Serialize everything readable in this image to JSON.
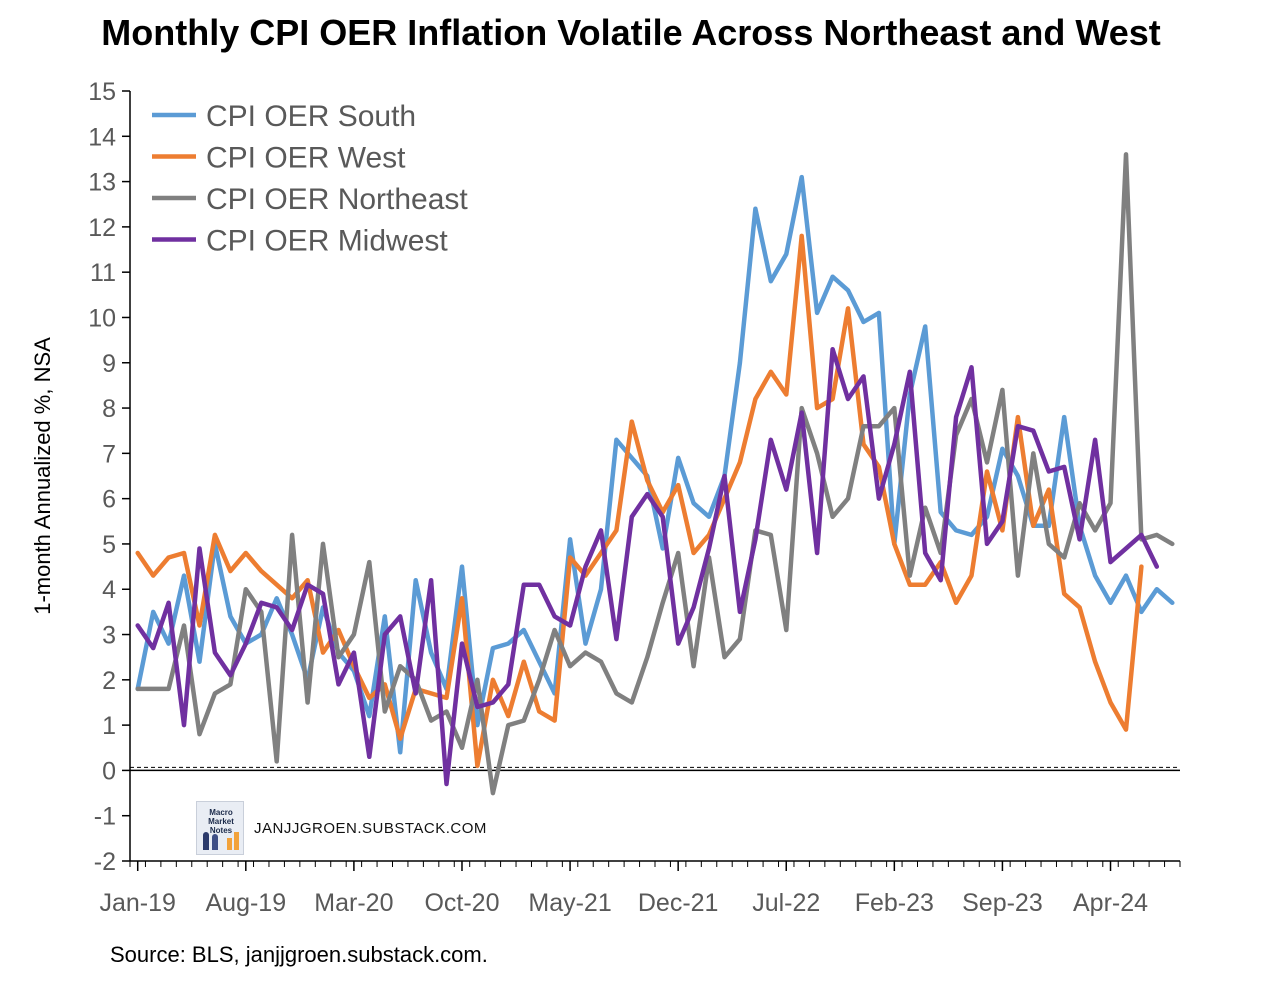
{
  "chart_data": {
    "type": "line",
    "title": "Monthly CPI OER Inflation Volatile Across Northeast and West",
    "ylabel": "1-month Annualized %, NSA",
    "xlabel": "",
    "ylim": [
      -2,
      15
    ],
    "yticks": [
      -2,
      -1,
      0,
      1,
      2,
      3,
      4,
      5,
      6,
      7,
      8,
      9,
      10,
      11,
      12,
      13,
      14,
      15
    ],
    "x_start": "Jan-19",
    "x_tick_labels": [
      "Jan-19",
      "Aug-19",
      "Mar-20",
      "Oct-20",
      "May-21",
      "Dec-21",
      "Jul-22",
      "Feb-23",
      "Sep-23",
      "Apr-24"
    ],
    "x_tick_index": [
      0,
      7,
      14,
      21,
      28,
      35,
      42,
      49,
      56,
      63
    ],
    "legend_position": "top-left",
    "grid": false,
    "series": [
      {
        "name": "CPI OER South",
        "color": "#5b9bd5",
        "values": [
          1.8,
          3.5,
          2.8,
          4.3,
          2.4,
          5.0,
          3.4,
          2.8,
          3.0,
          3.8,
          3.0,
          2.0,
          3.6,
          2.6,
          2.2,
          1.2,
          3.4,
          0.4,
          4.2,
          2.6,
          1.8,
          4.5,
          1.0,
          2.7,
          2.8,
          3.1,
          2.4,
          1.7,
          5.1,
          2.8,
          4.0,
          7.3,
          6.9,
          6.5,
          4.9,
          6.9,
          5.9,
          5.6,
          6.5,
          9.0,
          12.4,
          10.8,
          11.4,
          13.1,
          10.1,
          10.9,
          10.6,
          9.9,
          10.1,
          5.0,
          8.3,
          9.8,
          5.7,
          5.3,
          5.2,
          5.6,
          7.1,
          6.5,
          5.4,
          5.4,
          7.8,
          5.4,
          4.3,
          3.7,
          4.3,
          3.5,
          4.0,
          3.7
        ]
      },
      {
        "name": "CPI OER West",
        "color": "#ed7d31",
        "values": [
          4.8,
          4.3,
          4.7,
          4.8,
          3.2,
          5.2,
          4.4,
          4.8,
          4.4,
          4.1,
          3.8,
          4.2,
          2.6,
          3.1,
          2.3,
          1.6,
          1.9,
          0.7,
          1.8,
          1.7,
          1.6,
          3.8,
          0.1,
          2.0,
          1.2,
          2.4,
          1.3,
          1.1,
          4.7,
          4.3,
          4.8,
          5.3,
          7.7,
          6.4,
          5.7,
          6.3,
          4.8,
          5.2,
          6.0,
          6.8,
          8.2,
          8.8,
          8.3,
          11.8,
          8.0,
          8.2,
          10.2,
          7.2,
          6.7,
          5.0,
          4.1,
          4.1,
          4.6,
          3.7,
          4.3,
          6.6,
          5.3,
          7.8,
          5.4,
          6.2,
          3.9,
          3.6,
          2.4,
          1.5,
          0.9,
          4.5
        ]
      },
      {
        "name": "CPI OER Northeast",
        "color": "#808080",
        "values": [
          1.8,
          1.8,
          1.8,
          3.2,
          0.8,
          1.7,
          1.9,
          4.0,
          3.5,
          0.2,
          5.2,
          1.5,
          5.0,
          2.5,
          3.0,
          4.6,
          1.3,
          2.3,
          2.0,
          1.1,
          1.3,
          0.5,
          2.0,
          -0.5,
          1.0,
          1.1,
          2.0,
          3.1,
          2.3,
          2.6,
          2.4,
          1.7,
          1.5,
          2.5,
          3.7,
          4.8,
          2.3,
          4.7,
          2.5,
          2.9,
          5.3,
          5.2,
          3.1,
          8.0,
          7.0,
          5.6,
          6.0,
          7.6,
          7.6,
          8.0,
          4.3,
          5.8,
          4.8,
          7.4,
          8.2,
          6.8,
          8.4,
          4.3,
          7.0,
          5.0,
          4.7,
          5.9,
          5.3,
          5.9,
          13.6,
          5.1,
          5.2,
          5.0
        ]
      },
      {
        "name": "CPI OER Midwest",
        "color": "#7030a0",
        "values": [
          3.2,
          2.7,
          3.7,
          1.0,
          4.9,
          2.6,
          2.1,
          2.8,
          3.7,
          3.6,
          3.1,
          4.1,
          3.9,
          1.9,
          2.6,
          0.3,
          3.0,
          3.4,
          1.7,
          4.2,
          -0.3,
          2.8,
          1.4,
          1.5,
          1.9,
          4.1,
          4.1,
          3.4,
          3.2,
          4.5,
          5.3,
          2.9,
          5.6,
          6.1,
          5.6,
          2.8,
          3.6,
          4.9,
          6.5,
          3.5,
          5.1,
          7.3,
          6.2,
          7.9,
          4.8,
          9.3,
          8.2,
          8.7,
          6.0,
          7.2,
          8.8,
          4.8,
          4.2,
          7.8,
          8.9,
          5.0,
          5.5,
          7.6,
          7.5,
          6.6,
          6.7,
          5.1,
          7.3,
          4.6,
          4.9,
          5.2,
          4.5
        ]
      }
    ]
  },
  "watermark": {
    "logo_text": "Macro Market Notes",
    "text": "JANJJGROEN.SUBSTACK.COM"
  },
  "source": "Source: BLS, janjjgroen.substack.com."
}
